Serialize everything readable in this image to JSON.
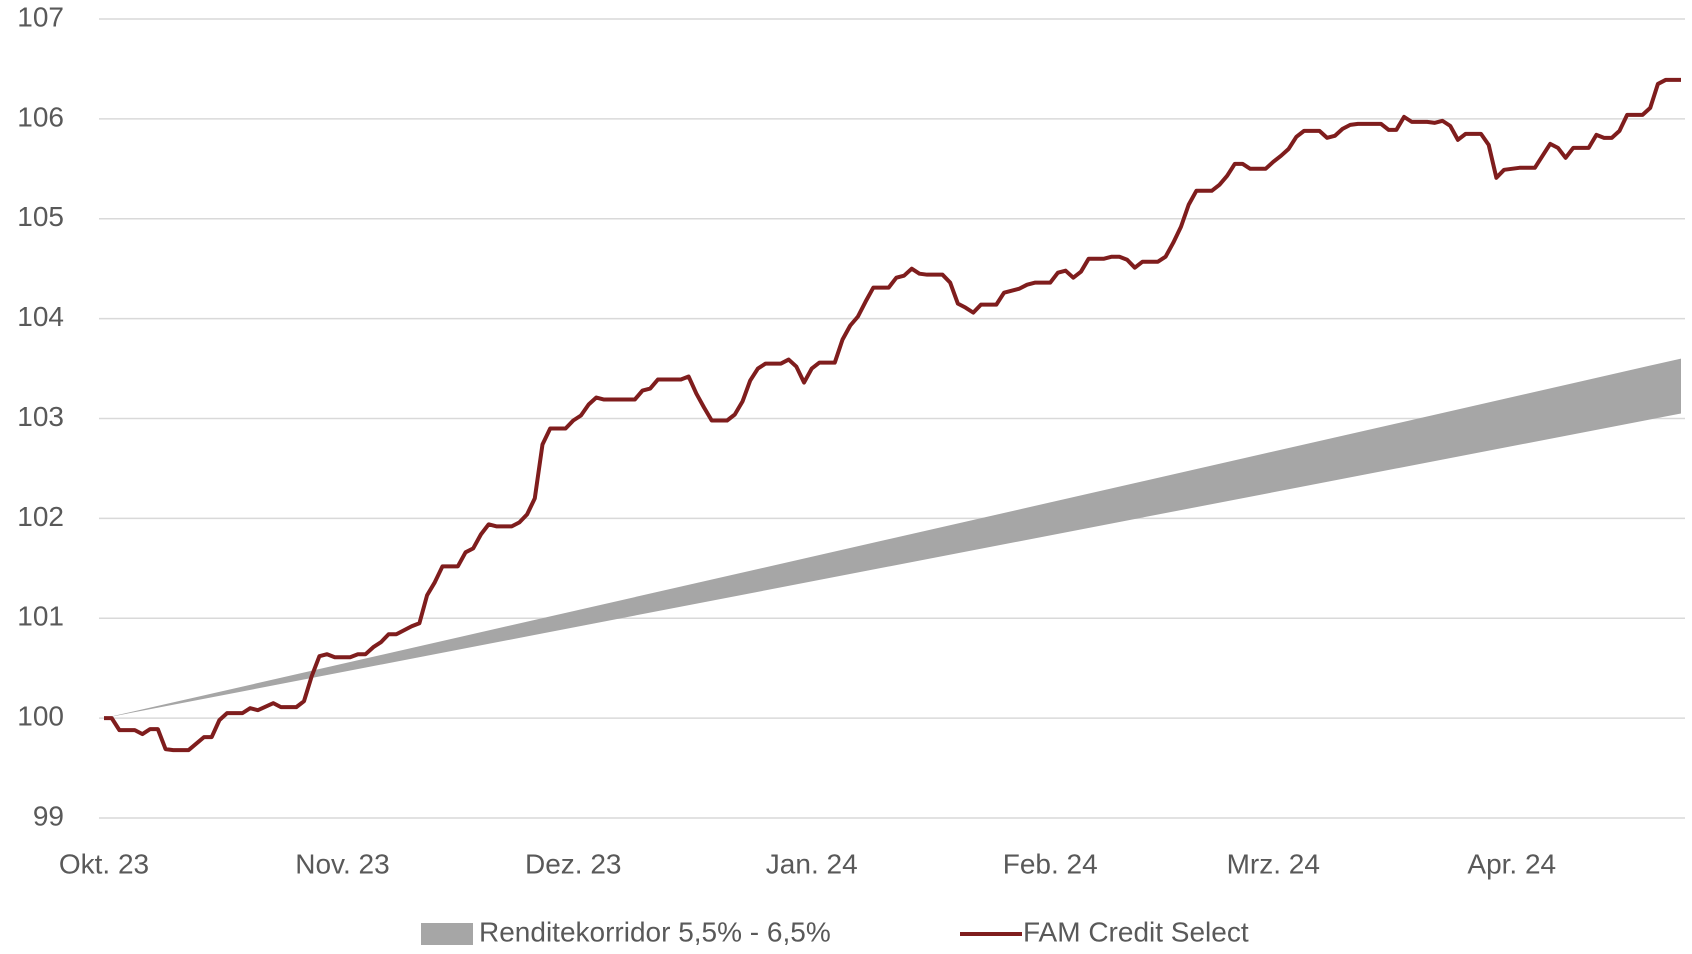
{
  "chart_data": {
    "type": "line",
    "xlim": [
      0,
      205
    ],
    "xticks": [
      {
        "value": 0,
        "label": "Okt. 23"
      },
      {
        "value": 31,
        "label": "Nov. 23"
      },
      {
        "value": 61,
        "label": "Dez. 23"
      },
      {
        "value": 92,
        "label": "Jan. 24"
      },
      {
        "value": 123,
        "label": "Feb. 24"
      },
      {
        "value": 152,
        "label": "Mrz. 24"
      },
      {
        "value": 183,
        "label": "Apr. 24"
      }
    ],
    "ylim": [
      99,
      107
    ],
    "yticks": [
      99,
      100,
      101,
      102,
      103,
      104,
      105,
      106,
      107
    ],
    "grid": true,
    "legend": "bottom",
    "series": [
      {
        "name": "Renditekorridor 5,5% - 6,5%",
        "type": "band",
        "color": "#a6a6a6",
        "x": [
          0,
          205
        ],
        "lower": [
          100,
          103.05
        ],
        "upper": [
          100,
          103.6
        ]
      },
      {
        "name": "FAM Credit Select",
        "type": "line",
        "color": "#7f1d1d",
        "x": [
          0,
          1,
          2,
          4,
          5,
          6,
          7,
          8,
          9,
          11,
          13,
          14,
          15,
          16,
          18,
          19,
          20,
          22,
          23,
          25,
          26,
          27,
          28,
          29,
          30,
          32,
          33,
          34,
          35,
          36,
          37,
          38,
          40,
          41,
          42,
          43,
          44,
          46,
          47,
          48,
          49,
          50,
          51,
          53,
          54,
          55,
          56,
          57,
          58,
          60,
          61,
          62,
          63,
          64,
          65,
          69,
          70,
          71,
          72,
          75,
          76,
          77,
          78,
          79,
          81,
          82,
          83,
          84,
          85,
          86,
          88,
          89,
          90,
          91,
          92,
          93,
          95,
          96,
          97,
          98,
          99,
          100,
          102,
          103,
          104,
          105,
          106,
          107,
          109,
          110,
          111,
          112,
          113,
          114,
          116,
          117,
          118,
          119,
          120,
          121,
          123,
          124,
          125,
          126,
          127,
          128,
          130,
          131,
          132,
          133,
          134,
          135,
          137,
          138,
          139,
          140,
          141,
          142,
          144,
          145,
          146,
          147,
          148,
          149,
          151,
          152,
          153,
          154,
          155,
          156,
          158,
          159,
          160,
          161,
          162,
          163,
          165,
          166,
          167,
          168,
          169,
          170,
          172,
          173,
          174,
          175,
          176,
          177,
          179,
          180,
          181,
          182,
          184,
          185,
          186,
          187,
          188,
          189,
          190,
          191,
          193,
          194,
          195,
          196,
          197,
          198,
          200,
          201,
          202,
          203,
          205
        ],
        "values": [
          100.0,
          100.0,
          99.88,
          99.88,
          99.84,
          99.89,
          99.89,
          99.69,
          99.68,
          99.68,
          99.81,
          99.81,
          99.98,
          100.05,
          100.05,
          100.1,
          100.08,
          100.15,
          100.11,
          100.11,
          100.17,
          100.42,
          100.62,
          100.64,
          100.61,
          100.61,
          100.64,
          100.64,
          100.71,
          100.76,
          100.84,
          100.84,
          100.92,
          100.95,
          101.23,
          101.36,
          101.52,
          101.52,
          101.66,
          101.7,
          101.84,
          101.94,
          101.92,
          101.92,
          101.96,
          102.04,
          102.2,
          102.74,
          102.9,
          102.9,
          102.98,
          103.03,
          103.14,
          103.21,
          103.19,
          103.19,
          103.28,
          103.3,
          103.39,
          103.39,
          103.42,
          103.25,
          103.11,
          102.98,
          102.98,
          103.04,
          103.17,
          103.38,
          103.5,
          103.55,
          103.55,
          103.59,
          103.52,
          103.36,
          103.5,
          103.56,
          103.56,
          103.79,
          103.93,
          104.02,
          104.17,
          104.31,
          104.31,
          104.41,
          104.43,
          104.5,
          104.45,
          104.44,
          104.44,
          104.36,
          104.15,
          104.11,
          104.06,
          104.14,
          104.14,
          104.26,
          104.28,
          104.3,
          104.34,
          104.36,
          104.36,
          104.46,
          104.48,
          104.41,
          104.47,
          104.6,
          104.6,
          104.62,
          104.62,
          104.59,
          104.51,
          104.57,
          104.57,
          104.62,
          104.76,
          104.92,
          105.14,
          105.28,
          105.28,
          105.34,
          105.43,
          105.55,
          105.55,
          105.5,
          105.5,
          105.57,
          105.63,
          105.7,
          105.82,
          105.88,
          105.88,
          105.81,
          105.83,
          105.9,
          105.94,
          105.95,
          105.95,
          105.95,
          105.89,
          105.89,
          106.02,
          105.97,
          105.97,
          105.96,
          105.98,
          105.93,
          105.79,
          105.85,
          105.85,
          105.74,
          105.41,
          105.49,
          105.51,
          105.51,
          105.51,
          105.63,
          105.75,
          105.71,
          105.61,
          105.71,
          105.71,
          105.84,
          105.81,
          105.81,
          105.88,
          106.04,
          106.04,
          106.11,
          106.35,
          106.39,
          106.39
        ]
      }
    ]
  }
}
